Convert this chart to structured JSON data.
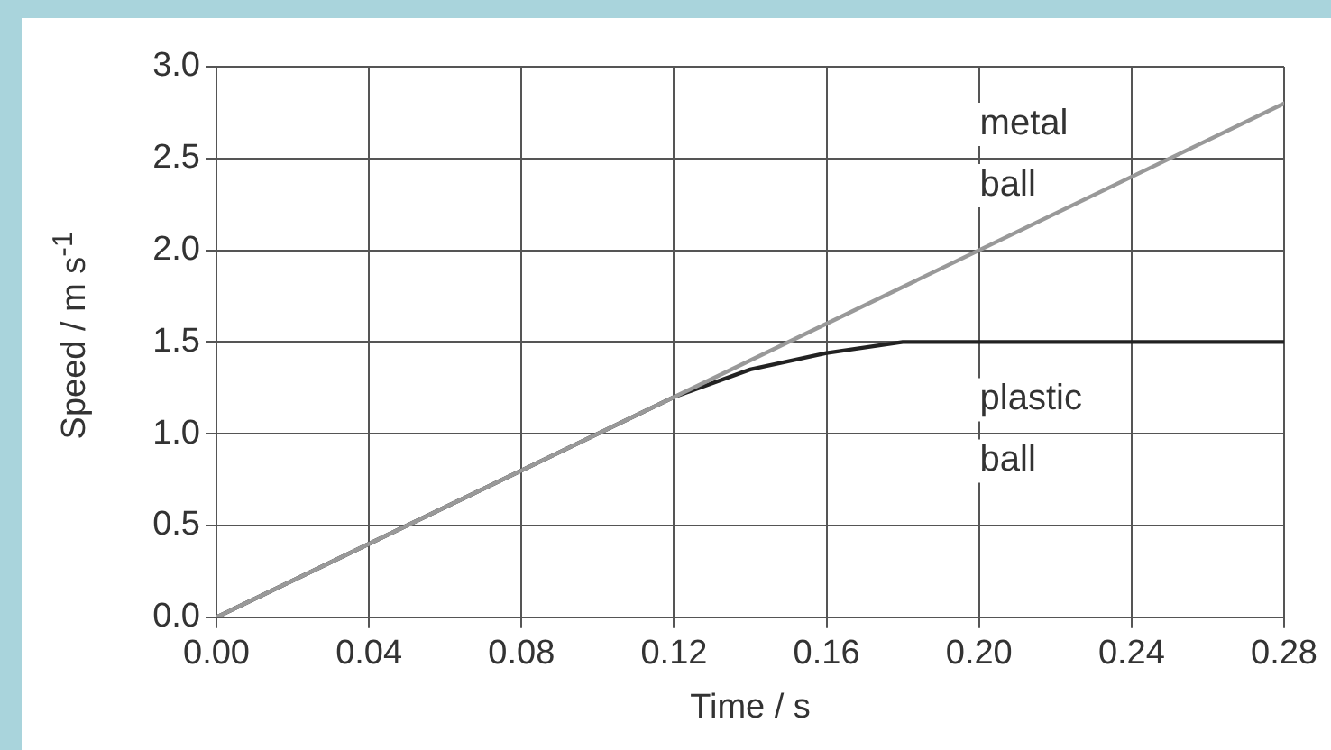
{
  "chart_data": {
    "type": "line",
    "xlabel": "Time / s",
    "ylabel": "Speed / m s$^{-1}$",
    "xlim": [
      0,
      0.28
    ],
    "ylim": [
      0,
      3.0
    ],
    "xticks": [
      {
        "value": 0,
        "label": "0.00"
      },
      0.04,
      0.08,
      0.12,
      0.16,
      {
        "value": 0.2,
        "label": "0.20"
      },
      0.24,
      0.28
    ],
    "yticks": [
      {
        "value": 0,
        "label": "0.0"
      },
      0.5,
      {
        "value": 1,
        "label": "1.0"
      },
      1.5,
      {
        "value": 2,
        "label": "2.0"
      },
      2.5,
      {
        "value": 3,
        "label": "3.0"
      }
    ],
    "grid": true,
    "legend": false,
    "marker": "none",
    "line_style": "solid",
    "series": [
      {
        "name": "metal ball",
        "color": "#999999",
        "x": [
          0,
          0.28
        ],
        "values": [
          0,
          2.8
        ]
      },
      {
        "name": "plastic ball",
        "color": "#222222",
        "x": [
          0,
          0.12,
          0.14,
          0.16,
          0.18,
          0.28
        ],
        "values": [
          0,
          1.2,
          1.35,
          1.44,
          1.5,
          1.5
        ]
      }
    ]
  }
}
